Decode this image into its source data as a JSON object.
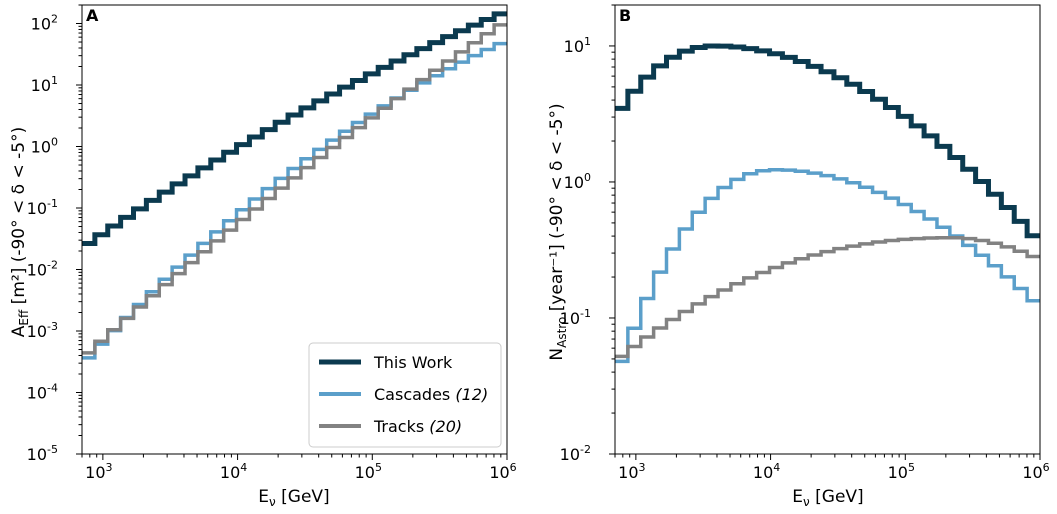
{
  "colors": {
    "this_work": "#0b3a4f",
    "cascades": "#5b9fca",
    "tracks": "#828282"
  },
  "chart_data": [
    {
      "type": "line",
      "panel_label": "A",
      "xlabel": "Eν [GeV]",
      "ylabel": "AEff [m²] (-90° < δ < -5°)",
      "xscale": "log",
      "yscale": "log",
      "xlim": [
        700,
        1000000
      ],
      "ylim": [
        1e-05,
        200
      ],
      "x_ticks": [
        "10^3",
        "10^4",
        "10^5",
        "10^6"
      ],
      "y_ticks": [
        "10^-5",
        "10^-4",
        "10^-3",
        "10^-2",
        "10^-1",
        "10^0",
        "10^1",
        "10^2"
      ],
      "legend_position": "lower-right",
      "series": [
        {
          "name": "This Work",
          "ref": "",
          "log10_start": [
            2.845,
            -1.65
          ],
          "log10_end": [
            6.0,
            2.2
          ]
        },
        {
          "name": "Cascades",
          "ref": "(12)",
          "log10_start": [
            2.845,
            -3.55
          ],
          "log10_end": [
            6.0,
            1.72
          ]
        },
        {
          "name": "Tracks",
          "ref": "(20)",
          "log10_start": [
            2.845,
            -3.45
          ],
          "log10_end": [
            6.0,
            2.05
          ]
        }
      ]
    },
    {
      "type": "line",
      "panel_label": "B",
      "xlabel": "Eν [GeV]",
      "ylabel": "NAstro [year⁻¹] (-90° < δ < -5°)",
      "xscale": "log",
      "yscale": "log",
      "xlim": [
        700,
        1000000
      ],
      "ylim": [
        0.01,
        20
      ],
      "x_ticks": [
        "10^3",
        "10^4",
        "10^5",
        "10^6"
      ],
      "y_ticks": [
        "10^-2",
        "10^-1",
        "10^0",
        "10^1"
      ],
      "series": [
        {
          "name": "This Work",
          "peak_log10": [
            3.6,
            1.0
          ],
          "log10_start": [
            2.845,
            0.47
          ],
          "log10_end": [
            6.0,
            -0.45
          ]
        },
        {
          "name": "Cascades",
          "peak_log10": [
            4.05,
            0.09
          ],
          "log10_start": [
            2.845,
            -1.45
          ],
          "log10_end": [
            6.0,
            -0.92
          ]
        },
        {
          "name": "Tracks",
          "peak_log10": [
            5.35,
            -0.41
          ],
          "log10_start": [
            2.845,
            -1.32
          ],
          "log10_end": [
            6.0,
            -0.57
          ]
        }
      ]
    }
  ],
  "text": {
    "panel_a": "A",
    "panel_b": "B",
    "xlabel_main": "E",
    "xlabel_sub": "ν",
    "xlabel_unit": " [GeV]",
    "ylabel_a_main": "A",
    "ylabel_a_sub": "Eff",
    "ylabel_a_rest": " [m²] (-90° < δ < -5°)",
    "ylabel_b_main": "N",
    "ylabel_b_sub": "Astro",
    "ylabel_b_rest": " [year⁻¹] (-90° < δ < -5°)",
    "legend_this_work": "This Work",
    "legend_cascades": "Cascades ",
    "legend_cascades_ref": "(12)",
    "legend_tracks": "Tracks ",
    "legend_tracks_ref": "(20)"
  }
}
